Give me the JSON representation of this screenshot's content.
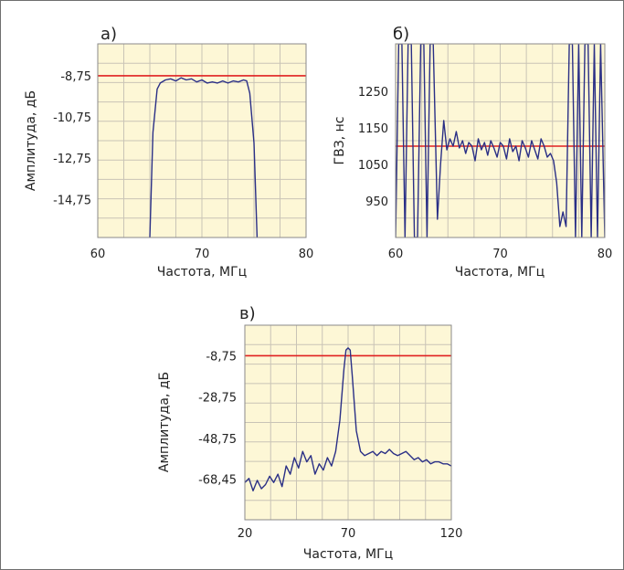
{
  "chart_data": [
    {
      "type": "line",
      "panel_label": "а)",
      "xlabel": "Частота, МГц",
      "ylabel": "Амплитуда, дБ",
      "xlim": [
        60,
        80
      ],
      "ylim": [
        -16.6,
        -7.2
      ],
      "x_ticks": [
        "60",
        "70",
        "80"
      ],
      "x_tick_values": [
        60,
        70,
        80
      ],
      "y_ticks": [
        "-8,75",
        "-10,75",
        "-12,75",
        "-14,75"
      ],
      "y_tick_values": [
        -8.75,
        -10.75,
        -12.75,
        -14.75
      ],
      "grid": true,
      "reference_line": -8.75,
      "series": [
        {
          "values_x": [
            65.0,
            65.3,
            65.7,
            66.0,
            66.5,
            67.0,
            67.5,
            68.0,
            68.5,
            69.0,
            69.5,
            70.0,
            70.5,
            71.0,
            71.5,
            72.0,
            72.5,
            73.0,
            73.5,
            74.0,
            74.3,
            74.6,
            75.0,
            75.3
          ],
          "values_y": [
            -16.6,
            -11.5,
            -9.4,
            -9.1,
            -8.95,
            -8.9,
            -9.0,
            -8.85,
            -8.95,
            -8.9,
            -9.05,
            -8.95,
            -9.1,
            -9.05,
            -9.1,
            -9.0,
            -9.1,
            -9.0,
            -9.05,
            -8.95,
            -9.0,
            -9.6,
            -12.0,
            -16.6
          ]
        }
      ]
    },
    {
      "type": "line",
      "panel_label": "б)",
      "xlabel": "Частота, МГц",
      "ylabel": "ГВЗ, нс",
      "xlim": [
        60,
        80
      ],
      "ylim": [
        850,
        1380
      ],
      "x_ticks": [
        "60",
        "70",
        "80"
      ],
      "x_tick_values": [
        60,
        70,
        80
      ],
      "y_ticks": [
        "1250",
        "1150",
        "1050",
        "950"
      ],
      "y_tick_values": [
        1250,
        1150,
        1050,
        950
      ],
      "grid": true,
      "reference_line": 1100,
      "series": [
        {
          "values_x": [
            60.0,
            60.3,
            60.6,
            60.9,
            61.2,
            61.5,
            61.8,
            62.1,
            62.4,
            62.7,
            63.0,
            63.3,
            63.6,
            64.0,
            64.3,
            64.6,
            64.9,
            65.2,
            65.5,
            65.8,
            66.1,
            66.4,
            66.7,
            67.0,
            67.3,
            67.6,
            67.9,
            68.2,
            68.5,
            68.8,
            69.1,
            69.4,
            69.7,
            70.0,
            70.3,
            70.6,
            70.9,
            71.2,
            71.5,
            71.8,
            72.1,
            72.4,
            72.7,
            73.0,
            73.3,
            73.6,
            73.9,
            74.2,
            74.5,
            74.8,
            75.1,
            75.4,
            75.7,
            76.0,
            76.3,
            76.6,
            76.9,
            77.2,
            77.5,
            77.8,
            78.1,
            78.4,
            78.7,
            79.0,
            79.3,
            79.6,
            80.0
          ],
          "values_y": [
            850,
            1380,
            1380,
            850,
            1380,
            1380,
            850,
            850,
            1380,
            1380,
            850,
            1380,
            1380,
            900,
            1050,
            1170,
            1090,
            1120,
            1100,
            1140,
            1095,
            1115,
            1080,
            1110,
            1100,
            1060,
            1120,
            1090,
            1110,
            1075,
            1115,
            1095,
            1070,
            1110,
            1100,
            1065,
            1120,
            1085,
            1100,
            1060,
            1115,
            1095,
            1070,
            1115,
            1090,
            1065,
            1120,
            1100,
            1070,
            1080,
            1060,
            1000,
            880,
            920,
            880,
            1380,
            1380,
            850,
            1380,
            850,
            1380,
            1380,
            850,
            1380,
            850,
            1380,
            850
          ]
        }
      ]
    },
    {
      "type": "line",
      "panel_label": "в)",
      "xlabel": "Частота, МГц",
      "ylabel": "Амплитуда, дБ",
      "xlim": [
        20,
        120
      ],
      "ylim": [
        -88,
        6
      ],
      "x_ticks": [
        "20",
        "70",
        "120"
      ],
      "x_tick_values": [
        20,
        70,
        120
      ],
      "y_ticks": [
        "-8,75",
        "-28,75",
        "-48,75",
        "-68,45"
      ],
      "y_tick_values": [
        -8.75,
        -28.75,
        -48.75,
        -68.45
      ],
      "grid": true,
      "reference_line": -8.75,
      "series": [
        {
          "values_x": [
            20,
            22,
            24,
            26,
            28,
            30,
            32,
            34,
            36,
            38,
            40,
            42,
            44,
            46,
            48,
            50,
            52,
            54,
            56,
            58,
            60,
            62,
            64,
            66,
            68,
            69,
            70,
            71,
            72,
            74,
            76,
            78,
            80,
            82,
            84,
            86,
            88,
            90,
            92,
            94,
            96,
            98,
            100,
            102,
            104,
            106,
            108,
            110,
            112,
            114,
            116,
            118,
            120
          ],
          "values_y": [
            -70,
            -68,
            -74,
            -69,
            -73,
            -71,
            -67,
            -70,
            -66,
            -72,
            -62,
            -66,
            -58,
            -63,
            -55,
            -60,
            -57,
            -66,
            -61,
            -64,
            -58,
            -62,
            -55,
            -40,
            -15,
            -6,
            -5,
            -6,
            -18,
            -45,
            -55,
            -57,
            -56,
            -55,
            -57,
            -55,
            -56,
            -54,
            -56,
            -57,
            -56,
            -55,
            -57,
            -59,
            -58,
            -60,
            -59,
            -61,
            -60,
            -60,
            -61,
            -61,
            -62
          ]
        }
      ]
    }
  ]
}
